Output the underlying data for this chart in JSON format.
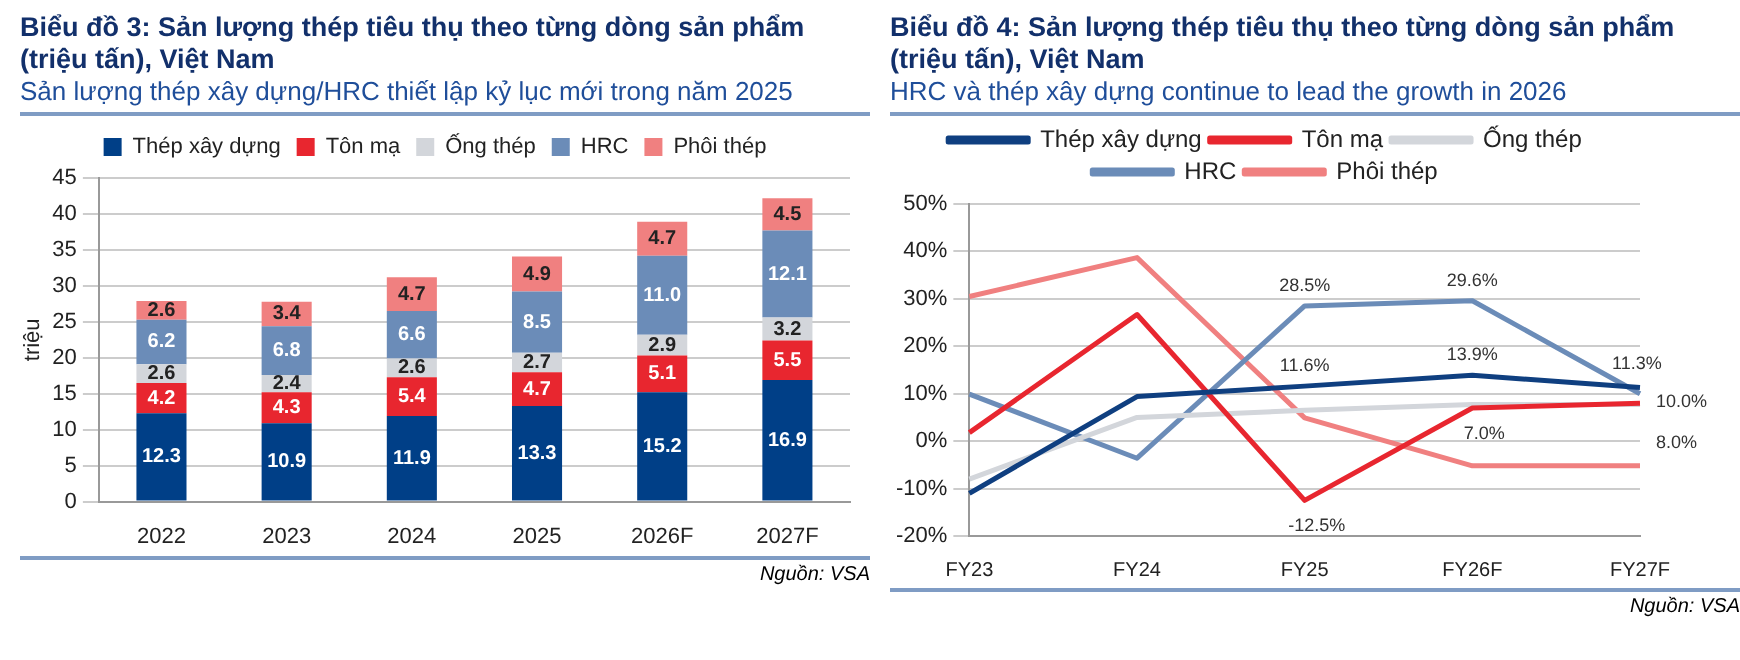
{
  "chart_data": [
    {
      "type": "bar",
      "title": "Biểu đồ 3: Sản lượng thép tiêu thụ theo từng dòng sản phẩm (triệu tấn), Việt Nam",
      "subtitle": "Sản lượng thép xây dựng/HRC thiết lập kỷ lục mới trong năm 2025",
      "ylabel": "triệu",
      "categories": [
        "2022",
        "2023",
        "2024",
        "2025",
        "2026F",
        "2027F"
      ],
      "stacked": true,
      "data_labels": true,
      "grid": "y",
      "legend": "top",
      "ylim": [
        0,
        45
      ],
      "yticks": [
        0,
        5,
        10,
        15,
        20,
        25,
        30,
        35,
        40,
        45
      ],
      "annotations": [
        "Nguồn: VSA"
      ],
      "series": [
        {
          "name": "Thép xây dựng",
          "color": "#003f87",
          "values": [
            12.3,
            10.9,
            11.9,
            13.3,
            15.2,
            16.9
          ]
        },
        {
          "name": "Tôn mạ",
          "color": "#e8262f",
          "values": [
            4.2,
            4.3,
            5.4,
            4.7,
            5.1,
            5.5
          ]
        },
        {
          "name": "Ống thép",
          "color": "#d3d6db",
          "values": [
            2.6,
            2.4,
            2.6,
            2.7,
            2.9,
            3.2
          ]
        },
        {
          "name": "HRC",
          "color": "#6b8cb8",
          "values": [
            6.2,
            6.8,
            6.6,
            8.5,
            11.0,
            12.1
          ],
          "value_labels": [
            "6.2",
            "6.8",
            "6.6",
            "8.5",
            "11.0",
            "12.1"
          ]
        },
        {
          "name": "Phôi thép",
          "color": "#f08080",
          "values": [
            2.6,
            3.4,
            4.7,
            4.9,
            4.7,
            4.5
          ]
        }
      ]
    },
    {
      "type": "line",
      "title": "Biểu đồ 4: Sản lượng thép tiêu thụ theo từng dòng sản phẩm (triệu tấn), Việt Nam",
      "subtitle": "HRC và thép xây dựng continue to lead the growth in 2026",
      "categories": [
        "FY23",
        "FY24",
        "FY25",
        "FY26F",
        "FY27F"
      ],
      "grid": "y",
      "legend": "top",
      "marker": "none",
      "line_style": "solid",
      "ylim": [
        -20,
        50
      ],
      "yticks": [
        {
          "value": -20,
          "label": "-20%"
        },
        {
          "value": -10,
          "label": "-10%"
        },
        {
          "value": 0,
          "label": "0%"
        },
        {
          "value": 10,
          "label": "10%"
        },
        {
          "value": 20,
          "label": "20%"
        },
        {
          "value": 30,
          "label": "30%"
        },
        {
          "value": 40,
          "label": "40%"
        },
        {
          "value": 50,
          "label": "50%"
        }
      ],
      "annotations": [
        "Nguồn: VSA"
      ],
      "series": [
        {
          "name": "Thép xây dựng",
          "color": "#0f3f80",
          "values": [
            -11,
            9.4,
            11.6,
            13.9,
            11.3
          ],
          "value_labels": [
            null,
            null,
            "11.6%",
            "13.9%",
            "11.3%"
          ]
        },
        {
          "name": "Tôn mạ",
          "color": "#e8262f",
          "values": [
            1.8,
            26.7,
            -12.5,
            7.0,
            8.0
          ],
          "value_labels": [
            null,
            null,
            "-12.5%",
            "7.0%",
            "8.0%"
          ]
        },
        {
          "name": "Ống thép",
          "color": "#d3d6db",
          "values": [
            -8,
            5,
            6.5,
            7.7,
            7.7
          ]
        },
        {
          "name": "HRC",
          "color": "#6b8cb8",
          "values": [
            9.9,
            -3.6,
            28.5,
            29.6,
            10.0
          ],
          "value_labels": [
            null,
            null,
            "28.5%",
            "29.6%",
            "10.0%"
          ]
        },
        {
          "name": "Phôi thép",
          "color": "#f08080",
          "values": [
            30.5,
            38.7,
            4.9,
            -5.2,
            -5.2
          ]
        }
      ]
    }
  ]
}
